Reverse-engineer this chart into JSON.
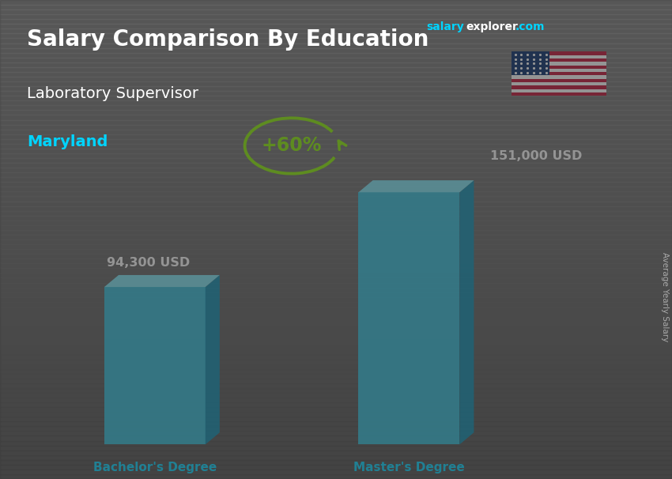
{
  "title1": "Salary Comparison By Education",
  "title2": "Laboratory Supervisor",
  "title3": "Maryland",
  "website_part1": "salary",
  "website_part2": "explorer",
  "website_part3": ".com",
  "categories": [
    "Bachelor's Degree",
    "Master's Degree"
  ],
  "values": [
    94300,
    151000
  ],
  "value_labels": [
    "94,300 USD",
    "151,000 USD"
  ],
  "bar_color_front": "#29C8E8",
  "bar_color_top": "#7EEEFF",
  "bar_color_right": "#0090B8",
  "bar_alpha": 0.88,
  "pct_label": "+60%",
  "ylabel_rotated": "Average Yearly Salary",
  "bg_color": "#5a5a5a",
  "overlay_color": "#444444",
  "title_color": "#ffffff",
  "subtitle_color": "#ffffff",
  "maryland_color": "#00D4FF",
  "bar_label_color": "#ffffff",
  "category_label_color": "#00D4FF",
  "pct_color": "#88EE00",
  "arrow_color": "#88EE00",
  "website_color1": "#00D4FF",
  "website_color2": "#ffffff",
  "website_color3": "#00D4FF",
  "rotated_label_color": "#aaaaaa"
}
